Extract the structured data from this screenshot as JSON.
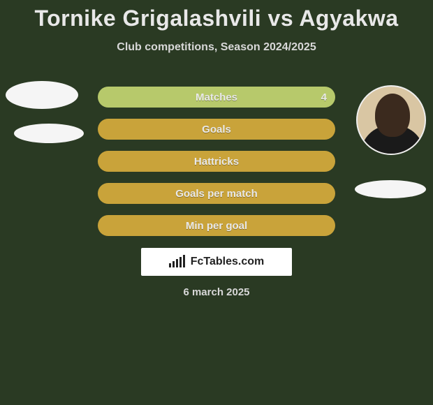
{
  "title": "Tornike Grigalashvili vs Agyakwa",
  "subtitle": "Club competitions, Season 2024/2025",
  "date": "6 march 2025",
  "logo_text": "FcTables.com",
  "colors": {
    "background": "#2a3a23",
    "bar_left": "#c9a33a",
    "bar_right_hl": "#b7c96b",
    "text_light": "#e8e8e8"
  },
  "stats": [
    {
      "label": "Matches",
      "right_value": "4",
      "highlight_right": true
    },
    {
      "label": "Goals",
      "right_value": "",
      "highlight_right": false
    },
    {
      "label": "Hattricks",
      "right_value": "",
      "highlight_right": false
    },
    {
      "label": "Goals per match",
      "right_value": "",
      "highlight_right": false
    },
    {
      "label": "Min per goal",
      "right_value": "",
      "highlight_right": false
    }
  ],
  "players": {
    "left": {
      "name": "Tornike Grigalashvili",
      "avatar_type": "placeholder"
    },
    "right": {
      "name": "Agyakwa",
      "avatar_type": "photo"
    }
  }
}
